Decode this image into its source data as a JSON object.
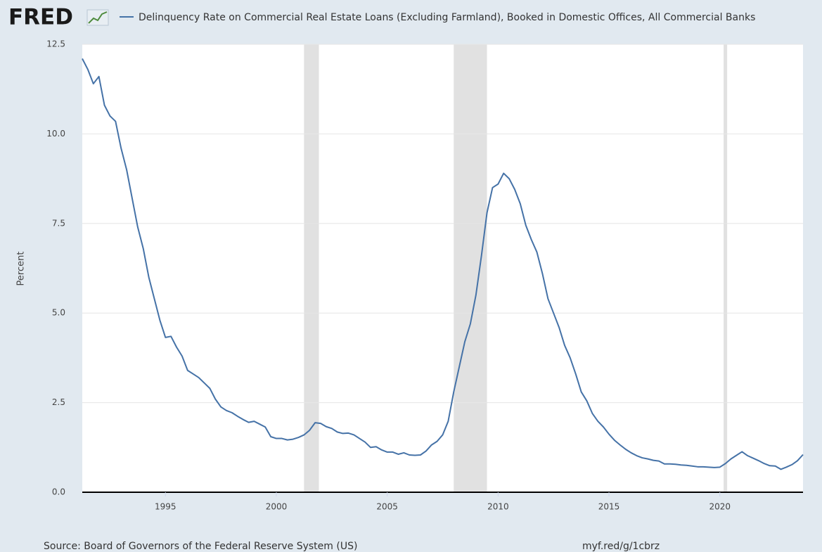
{
  "logo": "FRED",
  "chart_data": {
    "type": "line",
    "y_label": "Percent",
    "source": "Source: Board of Governors of the Federal Reserve System (US)",
    "short_url": "myf.red/g/1cbrz",
    "x": [
      1991.25,
      1991.5,
      1991.75,
      1992,
      1992.25,
      1992.5,
      1992.75,
      1993,
      1993.25,
      1993.5,
      1993.75,
      1994,
      1994.25,
      1994.5,
      1994.75,
      1995,
      1995.25,
      1995.5,
      1995.75,
      1996,
      1996.25,
      1996.5,
      1996.75,
      1997,
      1997.25,
      1997.5,
      1997.75,
      1998,
      1998.25,
      1998.5,
      1998.75,
      1999,
      1999.25,
      1999.5,
      1999.75,
      2000,
      2000.25,
      2000.5,
      2000.75,
      2001,
      2001.25,
      2001.5,
      2001.75,
      2002,
      2002.25,
      2002.5,
      2002.75,
      2003,
      2003.25,
      2003.5,
      2003.75,
      2004,
      2004.25,
      2004.5,
      2004.75,
      2005,
      2005.25,
      2005.5,
      2005.75,
      2006,
      2006.25,
      2006.5,
      2006.75,
      2007,
      2007.25,
      2007.5,
      2007.75,
      2008,
      2008.25,
      2008.5,
      2008.75,
      2009,
      2009.25,
      2009.5,
      2009.75,
      2010,
      2010.25,
      2010.5,
      2010.75,
      2011,
      2011.25,
      2011.5,
      2011.75,
      2012,
      2012.25,
      2012.5,
      2012.75,
      2013,
      2013.25,
      2013.5,
      2013.75,
      2014,
      2014.25,
      2014.5,
      2014.75,
      2015,
      2015.25,
      2015.5,
      2015.75,
      2016,
      2016.25,
      2016.5,
      2016.75,
      2017,
      2017.25,
      2017.5,
      2017.75,
      2018,
      2018.25,
      2018.5,
      2018.75,
      2019,
      2019.25,
      2019.5,
      2019.75,
      2020,
      2020.25,
      2020.5,
      2020.75,
      2021,
      2021.25,
      2021.5,
      2021.75,
      2022,
      2022.25,
      2022.5,
      2022.75,
      2023,
      2023.25,
      2023.5,
      2023.75
    ],
    "series": [
      {
        "name": "Delinquency Rate on Commercial Real Estate Loans (Excluding Farmland), Booked in Domestic Offices, All Commercial Banks",
        "color": "#4572a7",
        "values": [
          12.1,
          11.8,
          11.4,
          11.6,
          10.8,
          10.5,
          10.35,
          9.6,
          9.0,
          8.2,
          7.4,
          6.8,
          6.0,
          5.4,
          4.8,
          4.32,
          4.35,
          4.05,
          3.8,
          3.4,
          3.3,
          3.2,
          3.05,
          2.9,
          2.6,
          2.38,
          2.28,
          2.22,
          2.12,
          2.03,
          1.95,
          1.98,
          1.9,
          1.82,
          1.55,
          1.5,
          1.5,
          1.46,
          1.48,
          1.53,
          1.6,
          1.73,
          1.94,
          1.92,
          1.83,
          1.78,
          1.68,
          1.64,
          1.65,
          1.6,
          1.5,
          1.4,
          1.25,
          1.27,
          1.18,
          1.12,
          1.12,
          1.06,
          1.1,
          1.04,
          1.03,
          1.04,
          1.15,
          1.32,
          1.42,
          1.6,
          1.98,
          2.8,
          3.5,
          4.2,
          4.7,
          5.5,
          6.6,
          7.8,
          8.5,
          8.6,
          8.9,
          8.75,
          8.45,
          8.05,
          7.45,
          7.05,
          6.7,
          6.1,
          5.4,
          5.0,
          4.6,
          4.1,
          3.75,
          3.3,
          2.8,
          2.55,
          2.2,
          1.98,
          1.82,
          1.62,
          1.45,
          1.32,
          1.2,
          1.1,
          1.02,
          0.96,
          0.93,
          0.89,
          0.87,
          0.79,
          0.79,
          0.78,
          0.76,
          0.75,
          0.73,
          0.71,
          0.71,
          0.7,
          0.69,
          0.7,
          0.8,
          0.93,
          1.03,
          1.13,
          1.02,
          0.95,
          0.88,
          0.8,
          0.74,
          0.73,
          0.64,
          0.7,
          0.77,
          0.88,
          1.05
        ]
      }
    ],
    "recessions": [
      [
        2001.25,
        2001.92
      ],
      [
        2008.0,
        2009.5
      ],
      [
        2020.17,
        2020.33
      ]
    ],
    "recession_color": "#e1e1e1",
    "xlim": [
      1991.25,
      2023.75
    ],
    "ylim": [
      0,
      12.5
    ],
    "xticks": [
      1995,
      2000,
      2005,
      2010,
      2015,
      2020
    ],
    "yticks": [
      {
        "value": 0,
        "label": "0.0"
      },
      2.5,
      {
        "value": 5,
        "label": "5.0"
      },
      7.5,
      {
        "value": 10,
        "label": "10.0"
      },
      12.5
    ],
    "grid": true
  }
}
